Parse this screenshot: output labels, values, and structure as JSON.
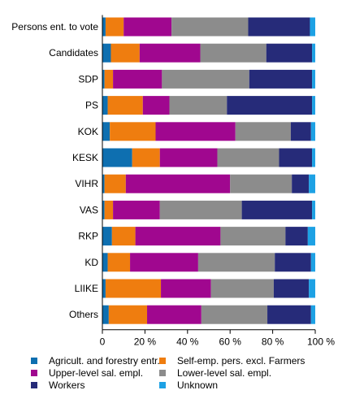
{
  "chart_data": {
    "type": "bar",
    "orientation": "horizontal",
    "stacked": true,
    "normalized": true,
    "title": "",
    "xlabel": "",
    "ylabel": "",
    "xlim": [
      0,
      100
    ],
    "x_ticks": [
      "0",
      "20 %",
      "40 %",
      "60 %",
      "80 %",
      "100 %"
    ],
    "grid": false,
    "legend_position": "bottom",
    "categories": [
      "Persons ent. to vote",
      "Candidates",
      "SDP",
      "PS",
      "KOK",
      "KESK",
      "VIHR",
      "VAS",
      "RKP",
      "KD",
      "LIIKE",
      "Others"
    ],
    "series": [
      {
        "name": "Agricult. and forestry entr.",
        "color": "#0e6fb0",
        "values": [
          1.5,
          4.0,
          1.0,
          2.5,
          3.5,
          14.0,
          1.0,
          1.0,
          4.5,
          2.5,
          1.5,
          3.0
        ]
      },
      {
        "name": "Self-emp. pers. excl. Farmers",
        "color": "#ef7d0f",
        "values": [
          8.5,
          13.5,
          4.0,
          16.5,
          21.5,
          13.0,
          10.0,
          4.0,
          11.0,
          10.5,
          26.0,
          18.0
        ]
      },
      {
        "name": "Upper-level sal. empl.",
        "color": "#a0078f",
        "values": [
          22.5,
          28.5,
          23.0,
          12.5,
          37.5,
          27.0,
          49.0,
          22.0,
          40.0,
          32.0,
          23.5,
          25.5
        ]
      },
      {
        "name": "Lower-level sal. empl.",
        "color": "#8c8c8c",
        "values": [
          36.0,
          31.0,
          41.0,
          27.0,
          26.0,
          29.0,
          29.0,
          38.5,
          30.5,
          36.0,
          29.5,
          31.0
        ]
      },
      {
        "name": "Workers",
        "color": "#262b79",
        "values": [
          29.0,
          21.5,
          29.5,
          40.0,
          9.5,
          15.5,
          8.0,
          33.0,
          10.5,
          17.0,
          16.5,
          20.5
        ]
      },
      {
        "name": "Unknown",
        "color": "#1da1e4",
        "values": [
          2.5,
          1.5,
          1.5,
          1.5,
          2.0,
          1.5,
          3.0,
          1.5,
          3.5,
          2.0,
          3.0,
          2.0
        ]
      }
    ]
  }
}
